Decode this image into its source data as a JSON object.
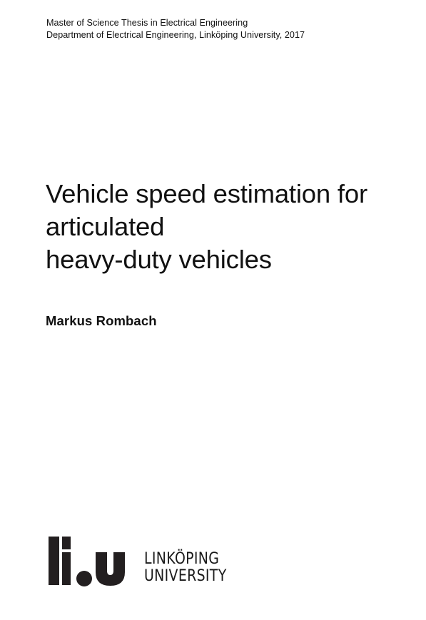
{
  "header": {
    "line1": "Master of Science Thesis in Electrical Engineering",
    "line2": "Department of Electrical Engineering, Linköping University, 2017"
  },
  "title": {
    "line1": "Vehicle speed estimation for",
    "line2": "articulated",
    "line3": "heavy-duty vehicles"
  },
  "author": "Markus Rombach",
  "logo": {
    "line1": "LINKÖPING",
    "line2": "UNIVERSITY"
  }
}
